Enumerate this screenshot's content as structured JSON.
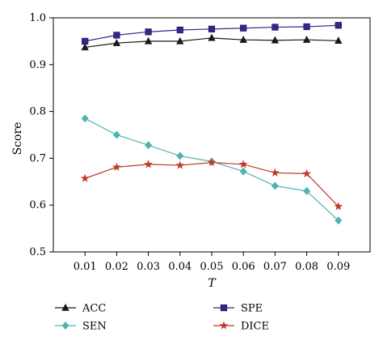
{
  "chart_data": {
    "type": "line",
    "title": "",
    "xlabel": "T",
    "ylabel": "Score",
    "x": [
      0.01,
      0.02,
      0.03,
      0.04,
      0.05,
      0.06,
      0.07,
      0.08,
      0.09
    ],
    "x_tick_labels": [
      "0.01",
      "0.02",
      "0.03",
      "0.04",
      "0.05",
      "0.06",
      "0.07",
      "0.08",
      "0.09"
    ],
    "xlim": [
      0.0,
      0.1
    ],
    "ylim": [
      0.5,
      1.0
    ],
    "y_ticks": [
      0.5,
      0.6,
      0.7,
      0.8,
      0.9,
      1.0
    ],
    "y_tick_labels": [
      "0.5",
      "0.6",
      "0.7",
      "0.8",
      "0.9",
      "1.0"
    ],
    "grid": false,
    "legend_position": "bottom",
    "series": [
      {
        "name": "ACC",
        "marker": "triangle",
        "color": "#1a1a1a",
        "values": [
          0.937,
          0.946,
          0.95,
          0.95,
          0.957,
          0.953,
          0.952,
          0.953,
          0.951
        ]
      },
      {
        "name": "SPE",
        "marker": "square",
        "color": "#2e2a8c",
        "values": [
          0.95,
          0.963,
          0.97,
          0.974,
          0.976,
          0.978,
          0.98,
          0.981,
          0.984
        ]
      },
      {
        "name": "SEN",
        "marker": "diamond",
        "color": "#4fb3b3",
        "values": [
          0.785,
          0.75,
          0.728,
          0.705,
          0.693,
          0.672,
          0.641,
          0.63,
          0.567
        ]
      },
      {
        "name": "DICE",
        "marker": "star",
        "color": "#c0392b",
        "values": [
          0.657,
          0.681,
          0.687,
          0.685,
          0.691,
          0.687,
          0.669,
          0.667,
          0.597
        ]
      }
    ]
  }
}
